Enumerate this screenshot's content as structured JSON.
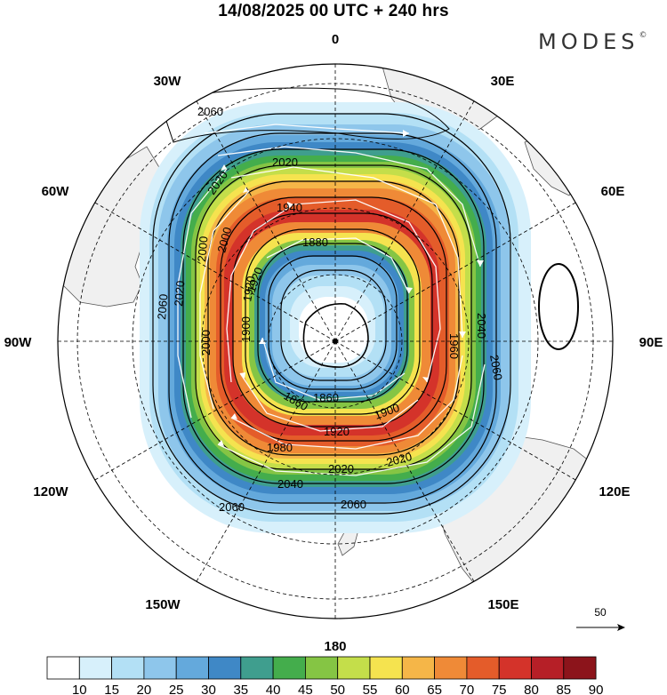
{
  "header": {
    "title": "14/08/2025  00 UTC  + 240 hrs",
    "brand": "MODES",
    "brand_mark": "©"
  },
  "map": {
    "projection": "south-polar-stereographic",
    "longitude_labels": [
      {
        "text": "0",
        "lon": 0
      },
      {
        "text": "30E",
        "lon": 30
      },
      {
        "text": "60E",
        "lon": 60
      },
      {
        "text": "90E",
        "lon": 90
      },
      {
        "text": "120E",
        "lon": 120
      },
      {
        "text": "150E",
        "lon": 150
      },
      {
        "text": "180",
        "lon": 180
      },
      {
        "text": "150W",
        "lon": -150
      },
      {
        "text": "120W",
        "lon": -120
      },
      {
        "text": "90W",
        "lon": -90
      },
      {
        "text": "60W",
        "lon": -60
      },
      {
        "text": "30W",
        "lon": -30
      }
    ],
    "geopotential_contour_labels": [
      "2060",
      "2020",
      "2020",
      "1940",
      "1880",
      "2000",
      "2000",
      "1920",
      "2060",
      "2020",
      "1900",
      "1920",
      "2000",
      "1960",
      "2040",
      "2060",
      "1860",
      "1860",
      "1900",
      "1920",
      "1980",
      "2020",
      "2020",
      "2040",
      "2060",
      "2060"
    ],
    "reference_vector": {
      "label": "50",
      "magnitude": 50
    }
  },
  "colorbar": {
    "ticks": [
      "10",
      "15",
      "20",
      "25",
      "30",
      "35",
      "40",
      "45",
      "50",
      "55",
      "60",
      "65",
      "70",
      "75",
      "80",
      "85",
      "90"
    ],
    "colors": [
      "#ffffff",
      "#d7f0fb",
      "#b3e0f5",
      "#8ec6eb",
      "#64a9dc",
      "#3f88c6",
      "#3f9e8e",
      "#44ad4c",
      "#85c544",
      "#c4de4a",
      "#f5e34f",
      "#f5b648",
      "#ef8a37",
      "#e45c2a",
      "#d4332a",
      "#b61f27",
      "#8c141b"
    ]
  }
}
